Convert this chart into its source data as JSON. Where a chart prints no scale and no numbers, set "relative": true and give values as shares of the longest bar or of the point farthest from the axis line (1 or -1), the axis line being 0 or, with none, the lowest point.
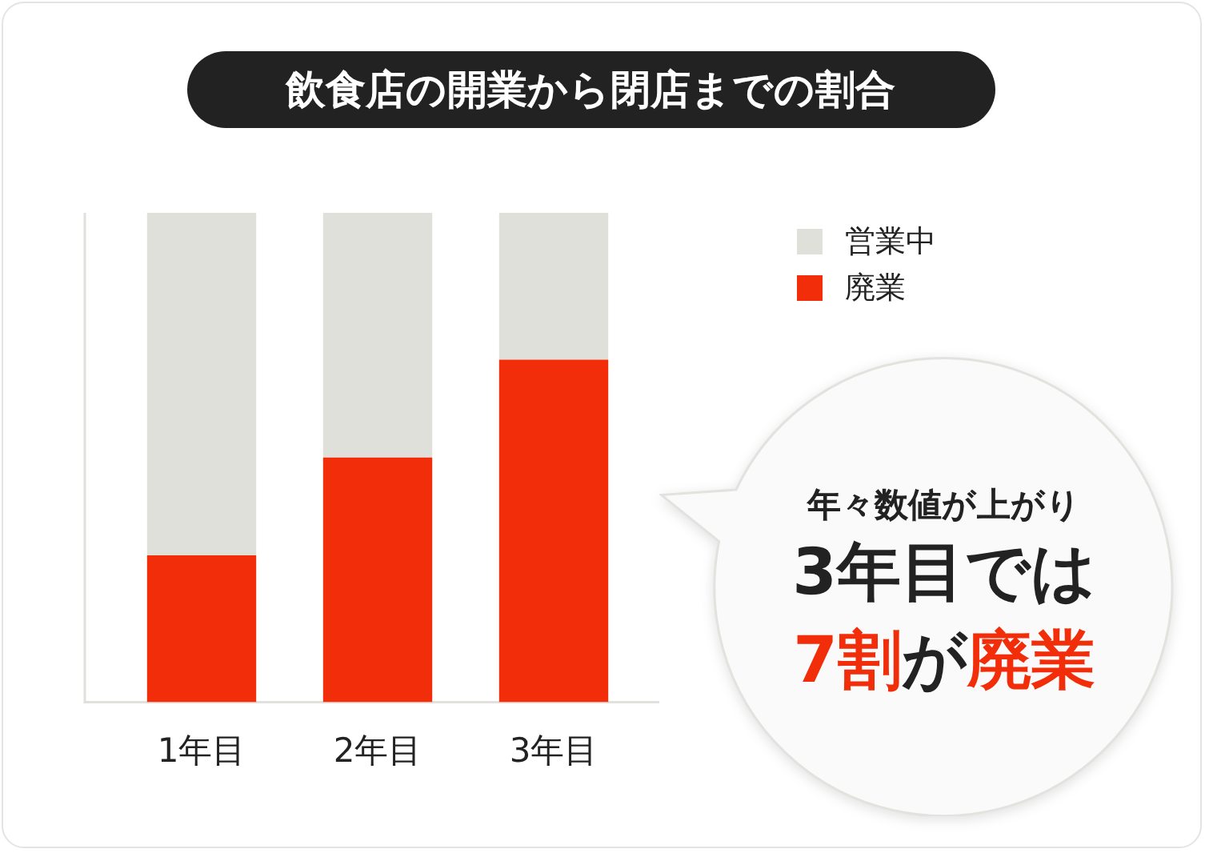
{
  "chart_data": {
    "type": "bar",
    "title": "飲食店の開業から閉店までの割合",
    "categories": [
      "1年目",
      "2年目",
      "3年目"
    ],
    "series": [
      {
        "name": "廃業",
        "color": "#f22e0a",
        "values": [
          0.3,
          0.5,
          0.7
        ]
      },
      {
        "name": "営業中",
        "color": "#e0e0db",
        "values": [
          0.7,
          0.5,
          0.3
        ]
      }
    ],
    "stacked": true,
    "relative": true,
    "legend": "top right",
    "annotations": [
      "年々数値が上がり",
      "3年目では",
      "7割",
      "が",
      "廃業"
    ]
  }
}
